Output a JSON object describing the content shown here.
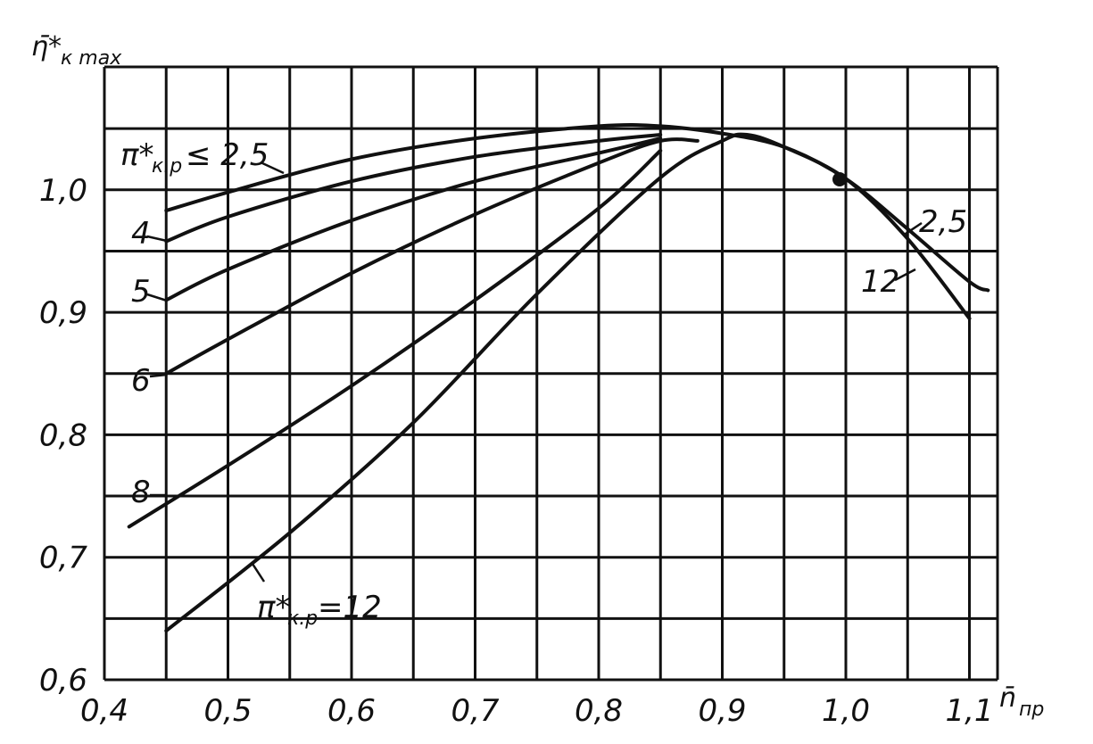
{
  "chart_data": {
    "type": "line",
    "title": "",
    "ylabel": "η̄*",
    "ylabel_sub": "к max",
    "xlabel": "n̄",
    "xlabel_sub": "пр",
    "xlim": [
      0.4,
      1.13
    ],
    "ylim": [
      0.6,
      1.07
    ],
    "x_ticks": [
      "0,4",
      "0,5",
      "0,6",
      "0,7",
      "0,8",
      "0,9",
      "1,0",
      "1,1"
    ],
    "y_ticks": [
      "0,6",
      "0,7",
      "0,8",
      "0,9",
      "1,0"
    ],
    "grid": true,
    "series": [
      {
        "name": "π*к.р ≤ 2,5",
        "points": [
          [
            0.45,
            0.983
          ],
          [
            0.5,
            0.998
          ],
          [
            0.6,
            1.025
          ],
          [
            0.7,
            1.042
          ],
          [
            0.8,
            1.052
          ],
          [
            0.85,
            1.052
          ],
          [
            0.9,
            1.046
          ],
          [
            0.95,
            1.035
          ],
          [
            1.0,
            1.009
          ],
          [
            1.05,
            0.968
          ],
          [
            1.1,
            0.925
          ],
          [
            1.115,
            0.918
          ]
        ]
      },
      {
        "name": "4",
        "points": [
          [
            0.45,
            0.958
          ],
          [
            0.5,
            0.978
          ],
          [
            0.6,
            1.007
          ],
          [
            0.7,
            1.027
          ],
          [
            0.8,
            1.04
          ],
          [
            0.85,
            1.045
          ]
        ]
      },
      {
        "name": "5",
        "points": [
          [
            0.45,
            0.91
          ],
          [
            0.5,
            0.935
          ],
          [
            0.6,
            0.975
          ],
          [
            0.7,
            1.007
          ],
          [
            0.8,
            1.03
          ],
          [
            0.85,
            1.042
          ]
        ]
      },
      {
        "name": "6",
        "points": [
          [
            0.45,
            0.85
          ],
          [
            0.5,
            0.878
          ],
          [
            0.6,
            0.932
          ],
          [
            0.7,
            0.98
          ],
          [
            0.8,
            1.022
          ],
          [
            0.85,
            1.04
          ],
          [
            0.88,
            1.04
          ]
        ]
      },
      {
        "name": "8",
        "points": [
          [
            0.42,
            0.725
          ],
          [
            0.5,
            0.775
          ],
          [
            0.6,
            0.84
          ],
          [
            0.7,
            0.91
          ],
          [
            0.8,
            0.985
          ],
          [
            0.85,
            1.032
          ]
        ]
      },
      {
        "name": "π*к.р=12",
        "points": [
          [
            0.45,
            0.64
          ],
          [
            0.55,
            0.72
          ],
          [
            0.65,
            0.81
          ],
          [
            0.75,
            0.915
          ],
          [
            0.85,
            1.01
          ],
          [
            0.9,
            1.04
          ],
          [
            0.92,
            1.045
          ],
          [
            0.95,
            1.035
          ],
          [
            1.0,
            1.009
          ],
          [
            1.05,
            0.96
          ],
          [
            1.1,
            0.895
          ]
        ]
      }
    ],
    "curve_labels": [
      {
        "text": "π*",
        "sub": "к.р",
        "rest": "≤ 2,5"
      },
      {
        "text": "4"
      },
      {
        "text": "5"
      },
      {
        "text": "6"
      },
      {
        "text": "8"
      },
      {
        "text": "π*",
        "sub": "к.р",
        "rest": "=12"
      },
      {
        "text": "2,5"
      },
      {
        "text": "12"
      }
    ]
  }
}
